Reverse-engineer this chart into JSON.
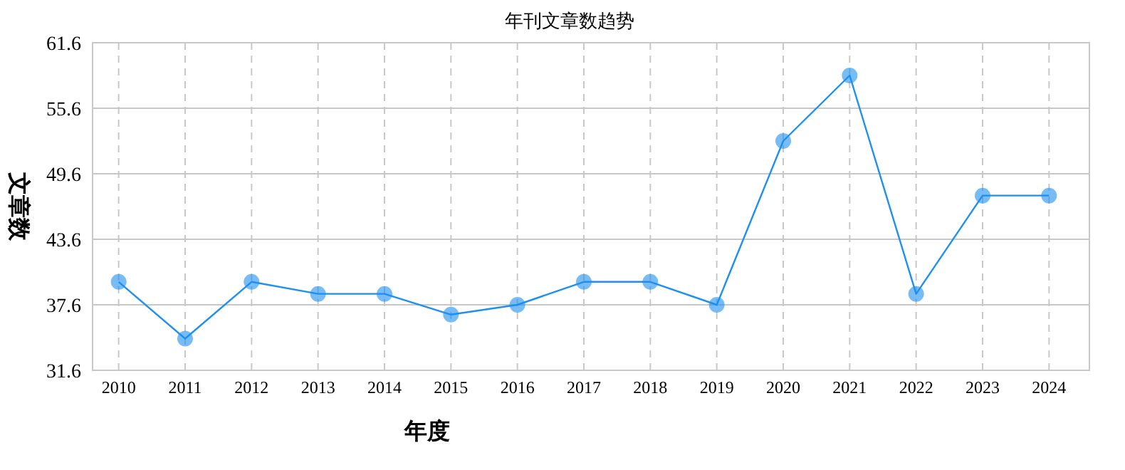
{
  "chart_data": {
    "type": "line",
    "title": "年刊文章数趋势",
    "xlabel": "年度",
    "ylabel": "文章数",
    "categories": [
      "2010",
      "2011",
      "2012",
      "2013",
      "2014",
      "2015",
      "2016",
      "2017",
      "2018",
      "2019",
      "2020",
      "2021",
      "2022",
      "2023",
      "2024"
    ],
    "series": [
      {
        "color": "#1e90f0",
        "values": [
          39.7,
          34.5,
          39.7,
          38.6,
          38.6,
          36.7,
          37.6,
          39.7,
          39.7,
          37.6,
          52.6,
          58.6,
          38.6,
          47.6,
          47.6
        ]
      }
    ],
    "ylim": [
      31.6,
      61.6
    ],
    "yticks": [
      31.6,
      37.6,
      43.6,
      49.6,
      55.6,
      61.6
    ],
    "grid": true,
    "marker": "circle",
    "line_style": "solid"
  }
}
